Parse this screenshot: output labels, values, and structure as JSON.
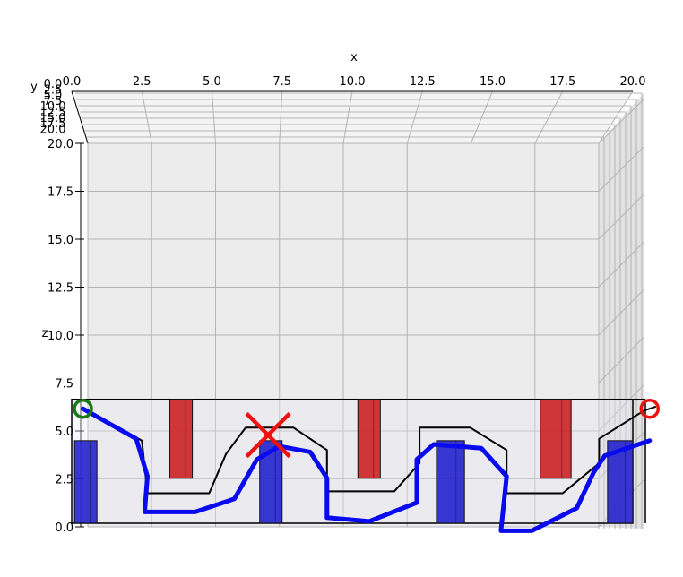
{
  "chart_data": {
    "type": "3d-line",
    "xlabel": "x",
    "ylabel": "y",
    "zlabel": "z",
    "xlim": [
      0,
      20
    ],
    "ylim": [
      0,
      20
    ],
    "zlim": [
      0,
      20
    ],
    "x_ticks": [
      "0.0",
      "2.5",
      "5.0",
      "7.5",
      "10.0",
      "12.5",
      "15.0",
      "17.5",
      "20.0"
    ],
    "y_ticks": [
      "0.0",
      "2.5",
      "5.0",
      "7.5",
      "10.0",
      "12.5",
      "15.0",
      "17.5",
      "20.0"
    ],
    "z_ticks": [
      "0.0",
      "2.5",
      "5.0",
      "7.5",
      "10.0",
      "12.5",
      "15.0",
      "17.5",
      "20.0"
    ],
    "grid": true,
    "obstacles": [
      {
        "color": "#cc2222",
        "x": [
          3.5,
          4.3
        ],
        "z": [
          2.4,
          6.6
        ]
      },
      {
        "color": "#2222cc",
        "x": [
          0.1,
          0.9
        ],
        "z": [
          0,
          4.4
        ]
      },
      {
        "color": "#2222cc",
        "x": [
          6.7,
          7.5
        ],
        "z": [
          0,
          4.4
        ]
      },
      {
        "color": "#cc2222",
        "x": [
          10.2,
          11.0
        ],
        "z": [
          2.4,
          6.6
        ]
      },
      {
        "color": "#2222cc",
        "x": [
          13.0,
          14.0
        ],
        "z": [
          0,
          4.4
        ]
      },
      {
        "color": "#cc2222",
        "x": [
          16.7,
          17.8
        ],
        "z": [
          2.4,
          6.6
        ]
      },
      {
        "color": "#2222cc",
        "x": [
          19.1,
          20.0
        ],
        "z": [
          0,
          4.4
        ]
      }
    ],
    "series": [
      {
        "color": "#000000",
        "points": [
          [
            0.4,
            6.1
          ],
          [
            2.5,
            4.4
          ],
          [
            2.7,
            1.6
          ],
          [
            4.9,
            1.6
          ],
          [
            5.5,
            3.7
          ],
          [
            6.2,
            5.1
          ],
          [
            7.9,
            5.1
          ],
          [
            9.1,
            3.9
          ],
          [
            9.1,
            1.7
          ],
          [
            11.5,
            1.7
          ],
          [
            12.4,
            3.2
          ],
          [
            12.4,
            5.1
          ],
          [
            14.2,
            5.1
          ],
          [
            15.5,
            3.9
          ],
          [
            15.5,
            1.6
          ],
          [
            17.5,
            1.6
          ],
          [
            18.8,
            3.2
          ],
          [
            18.8,
            4.5
          ],
          [
            20.4,
            6.0
          ],
          [
            20.8,
            6.2
          ]
        ]
      },
      {
        "color": "#0a0aee",
        "points": [
          [
            0.4,
            6.1
          ],
          [
            2.3,
            4.5
          ],
          [
            2.7,
            2.5
          ],
          [
            2.6,
            0.6
          ],
          [
            4.4,
            0.6
          ],
          [
            5.8,
            1.3
          ],
          [
            6.6,
            3.4
          ],
          [
            7.4,
            4.1
          ],
          [
            8.5,
            3.8
          ],
          [
            9.1,
            2.4
          ],
          [
            9.1,
            0.3
          ],
          [
            10.6,
            0.1
          ],
          [
            12.3,
            1.1
          ],
          [
            12.3,
            3.4
          ],
          [
            12.9,
            4.2
          ],
          [
            14.6,
            4.0
          ],
          [
            15.5,
            2.5
          ],
          [
            15.3,
            -0.4
          ],
          [
            16.4,
            -0.4
          ],
          [
            18.0,
            0.8
          ],
          [
            18.6,
            2.7
          ],
          [
            19.0,
            3.6
          ],
          [
            20.6,
            4.4
          ]
        ]
      }
    ],
    "markers": [
      {
        "shape": "circle",
        "color": "#1a7a1a",
        "x": 0.4,
        "z": 6.1
      },
      {
        "shape": "circle",
        "color": "#ee1111",
        "x": 20.6,
        "z": 6.1
      },
      {
        "shape": "x",
        "color": "#ee1111",
        "x": 7.0,
        "z": 4.7
      }
    ]
  }
}
